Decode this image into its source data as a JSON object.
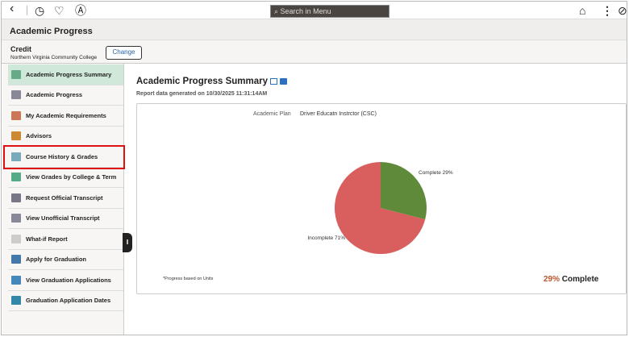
{
  "topbar": {
    "search_placeholder": "Search in Menu"
  },
  "header": {
    "title": "Academic Progress"
  },
  "career": {
    "label": "Credit",
    "institution": "Northern Virginia Community College",
    "change_label": "Change"
  },
  "sidebar": {
    "items": [
      {
        "label": "Academic Progress Summary",
        "color": "#6a8"
      },
      {
        "label": "Academic Progress",
        "color": "#889"
      },
      {
        "label": "My Academic Requirements",
        "color": "#c75"
      },
      {
        "label": "Advisors",
        "color": "#c83"
      },
      {
        "label": "Course History & Grades",
        "color": "#7ab"
      },
      {
        "label": "View Grades by College & Term",
        "color": "#5a8"
      },
      {
        "label": "Request Official Transcript",
        "color": "#778"
      },
      {
        "label": "View Unofficial Transcript",
        "color": "#889"
      },
      {
        "label": "What-if Report",
        "color": "#ccc"
      },
      {
        "label": "Apply for Graduation",
        "color": "#47a"
      },
      {
        "label": "View Graduation Applications",
        "color": "#48b"
      },
      {
        "label": "Graduation Application Dates",
        "color": "#38a"
      }
    ]
  },
  "main": {
    "title": "Academic Progress Summary",
    "generated": "Report data generated on 10/30/2025 11:31:14AM",
    "plan_label": "Academic Plan",
    "plan_value": "Driver Educatn Instrctor (CSC)",
    "note": "*Progress based on Units",
    "percent": "29%",
    "percent_suffix": "Complete"
  },
  "chart_data": {
    "type": "pie",
    "slices": [
      {
        "label": "Complete 29%",
        "value": 29,
        "color": "#5e8a3a"
      },
      {
        "label": "Incomplete 71%",
        "value": 71,
        "color": "#d95f5f"
      }
    ]
  }
}
